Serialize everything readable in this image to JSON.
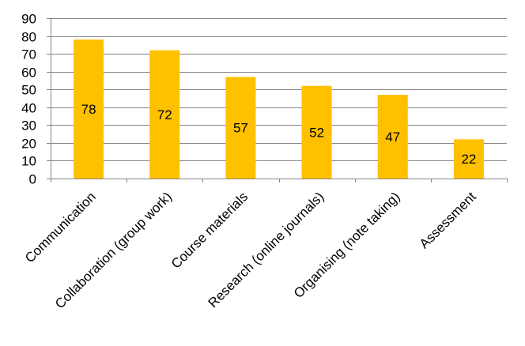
{
  "chart_data": {
    "type": "bar",
    "title": "",
    "xlabel": "",
    "ylabel": "",
    "ylim": [
      0,
      90
    ],
    "yticks": [
      0,
      10,
      20,
      30,
      40,
      50,
      60,
      70,
      80,
      90
    ],
    "grid": true,
    "legend": "none",
    "bar_color": "#FFC000",
    "grid_color": "#868686",
    "categories": [
      "Communication",
      "Collaboration (group work)",
      "Course materials",
      "Research (online journals)",
      "Organising (note taking)",
      "Assessment"
    ],
    "values": [
      78,
      72,
      57,
      52,
      47,
      22
    ],
    "data_labels": [
      "78",
      "72",
      "57",
      "52",
      "47",
      "22"
    ]
  }
}
